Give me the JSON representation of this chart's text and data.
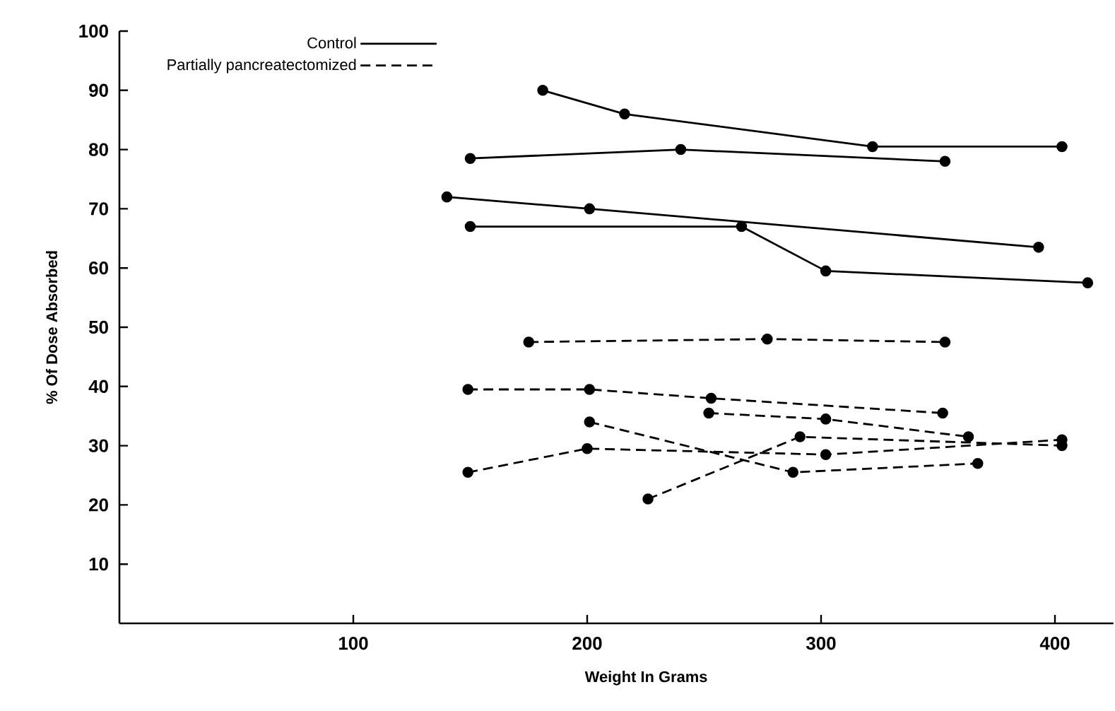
{
  "chart_data": {
    "type": "line",
    "xlabel": "Weight In Grams",
    "ylabel": "% Of Dose Absorbed",
    "xlim": [
      0,
      425
    ],
    "ylim": [
      0,
      100
    ],
    "xticks": [
      100,
      200,
      300,
      400
    ],
    "yticks": [
      10,
      20,
      30,
      40,
      50,
      60,
      70,
      80,
      90,
      100
    ],
    "marker": "circle",
    "legend": "top left",
    "series": [
      {
        "name": "Control",
        "color": "#000000",
        "line_style": "solid",
        "x": [
          181,
          216,
          322,
          403
        ],
        "values": [
          90,
          86,
          80.5,
          80.5
        ]
      },
      {
        "color": "#000000",
        "line_style": "solid",
        "x": [
          150,
          240,
          353
        ],
        "values": [
          78.5,
          80,
          78
        ]
      },
      {
        "color": "#000000",
        "line_style": "solid",
        "x": [
          140,
          201,
          393
        ],
        "values": [
          72,
          70,
          63.5
        ]
      },
      {
        "color": "#000000",
        "line_style": "solid",
        "x": [
          150,
          266,
          302,
          414
        ],
        "values": [
          67,
          67,
          59.5,
          57.5
        ]
      },
      {
        "name": "Partially pancreatectomized",
        "color": "#000000",
        "line_style": "dashed",
        "x": [
          175,
          277,
          353
        ],
        "values": [
          47.5,
          48,
          47.5
        ]
      },
      {
        "color": "#000000",
        "line_style": "dashed",
        "x": [
          149,
          201,
          253,
          352
        ],
        "values": [
          39.5,
          39.5,
          38,
          35.5
        ]
      },
      {
        "color": "#000000",
        "line_style": "dashed",
        "x": [
          252,
          302,
          363
        ],
        "values": [
          35.5,
          34.5,
          31.5
        ]
      },
      {
        "color": "#000000",
        "line_style": "dashed",
        "x": [
          201,
          288,
          367
        ],
        "values": [
          34,
          25.5,
          27
        ]
      },
      {
        "color": "#000000",
        "line_style": "dashed",
        "x": [
          149,
          200,
          302,
          403
        ],
        "values": [
          25.5,
          29.5,
          28.5,
          31
        ]
      },
      {
        "color": "#000000",
        "line_style": "dashed",
        "x": [
          226,
          291,
          403
        ],
        "values": [
          21,
          31.5,
          30
        ]
      }
    ]
  }
}
